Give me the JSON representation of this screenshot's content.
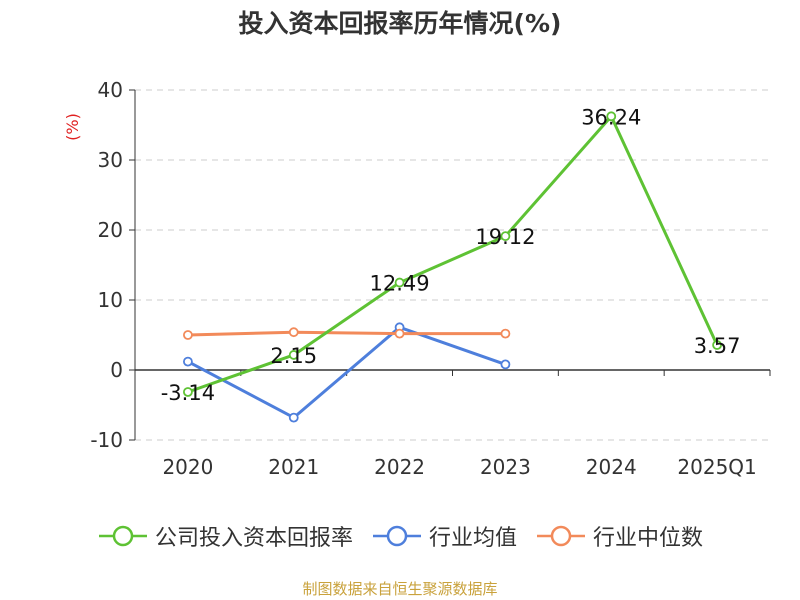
{
  "chart_data": {
    "type": "line",
    "title": "投入资本回报率历年情况(%)",
    "ylabel": "(%)",
    "categories": [
      "2020",
      "2021",
      "2022",
      "2023",
      "2024",
      "2025Q1"
    ],
    "ylim": [
      -10,
      40
    ],
    "yticks": [
      -10,
      0,
      10,
      20,
      30,
      40
    ],
    "grid": true,
    "legend_position": "bottom",
    "series": [
      {
        "name": "公司投入资本回报率",
        "color": "#5ec234",
        "values": [
          -3.14,
          2.15,
          12.49,
          19.12,
          36.24,
          3.57
        ],
        "labels": [
          "-3.14",
          "2.15",
          "12.49",
          "19.12",
          "36.24",
          "3.57"
        ]
      },
      {
        "name": "行业均值",
        "color": "#4e7fdc",
        "values": [
          1.2,
          -6.8,
          6.1,
          0.8,
          null,
          null
        ]
      },
      {
        "name": "行业中位数",
        "color": "#f28a5a",
        "values": [
          5.0,
          5.4,
          5.2,
          5.2,
          null,
          null
        ]
      }
    ]
  },
  "source_note": "制图数据来自恒生聚源数据库"
}
